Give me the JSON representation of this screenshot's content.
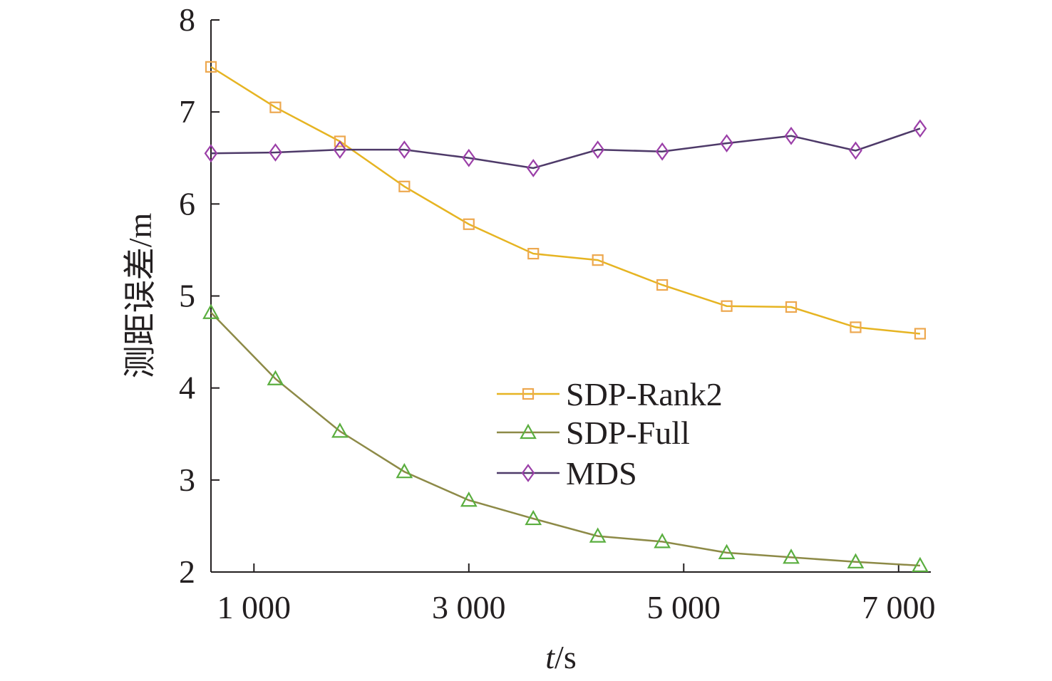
{
  "chart_data": {
    "type": "line",
    "xlabel_italic": "t",
    "xlabel_rest": "/s",
    "ylabel": "测距误差/m",
    "xlim": [
      600,
      7300
    ],
    "ylim": [
      2,
      8
    ],
    "x_ticks": [
      1000,
      3000,
      5000,
      7000
    ],
    "x_tick_labels": [
      "1 000",
      "3 000",
      "5 000",
      "7 000"
    ],
    "y_ticks": [
      2,
      3,
      4,
      5,
      6,
      7,
      8
    ],
    "y_tick_labels": [
      "2",
      "3",
      "4",
      "5",
      "6",
      "7",
      "8"
    ],
    "legend_position": "center",
    "x": [
      600,
      1200,
      1800,
      2400,
      3000,
      3600,
      4200,
      4800,
      5400,
      6000,
      6600,
      7200
    ],
    "series": [
      {
        "name": "SDP-Rank2",
        "marker": "square",
        "line_color": "#e6b422",
        "marker_color": "#eda84f",
        "values": [
          7.49,
          7.05,
          6.68,
          6.19,
          5.78,
          5.46,
          5.39,
          5.12,
          4.89,
          4.88,
          4.66,
          4.59
        ]
      },
      {
        "name": "SDP-Full",
        "marker": "triangle",
        "line_color": "#8d8a47",
        "marker_color": "#5aae3f",
        "values": [
          4.82,
          4.1,
          3.53,
          3.09,
          2.78,
          2.58,
          2.39,
          2.33,
          2.21,
          2.16,
          2.11,
          2.07
        ]
      },
      {
        "name": "MDS",
        "marker": "diamond",
        "line_color": "#4e3a69",
        "marker_color": "#9b3fa8",
        "values": [
          6.55,
          6.56,
          6.59,
          6.59,
          6.5,
          6.39,
          6.59,
          6.57,
          6.66,
          6.74,
          6.58,
          6.82
        ]
      }
    ]
  }
}
